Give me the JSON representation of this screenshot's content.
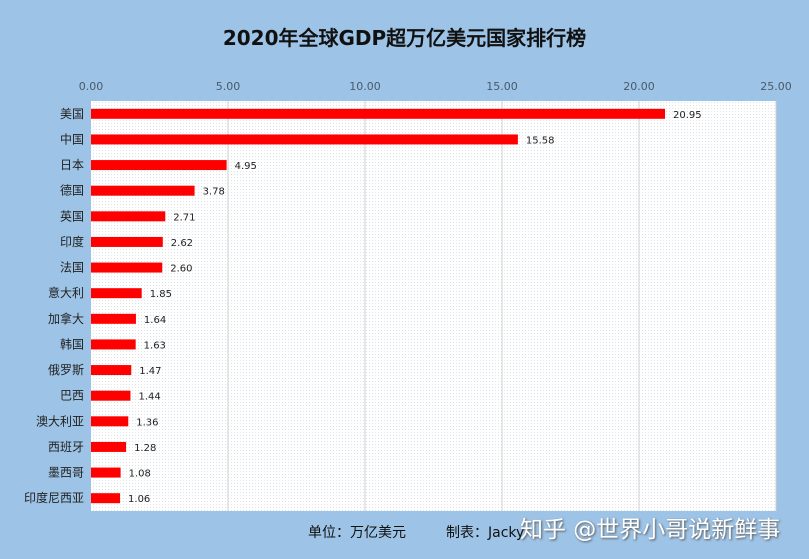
{
  "chart_data": {
    "type": "bar",
    "orientation": "horizontal",
    "title": "2020年全球GDP超万亿美元国家排行榜",
    "categories": [
      "美国",
      "中国",
      "日本",
      "德国",
      "英国",
      "印度",
      "法国",
      "意大利",
      "加拿大",
      "韩国",
      "俄罗斯",
      "巴西",
      "澳大利亚",
      "西班牙",
      "墨西哥",
      "印度尼西亚"
    ],
    "values": [
      20.95,
      15.58,
      4.95,
      3.78,
      2.71,
      2.62,
      2.6,
      1.85,
      1.64,
      1.63,
      1.47,
      1.44,
      1.36,
      1.28,
      1.08,
      1.06
    ],
    "xlim": [
      0,
      25
    ],
    "ticks": [
      "0.00",
      "5.00",
      "10.00",
      "15.00",
      "20.00",
      "25.00"
    ],
    "axis_position": "top",
    "grid": true,
    "bar_color": "#ff0000",
    "background_color": "#9dc3e6"
  },
  "footer": {
    "unit": "单位：万亿美元",
    "maker": "制表：Jacky"
  },
  "watermark": "知乎 @世界小哥说新鲜事"
}
